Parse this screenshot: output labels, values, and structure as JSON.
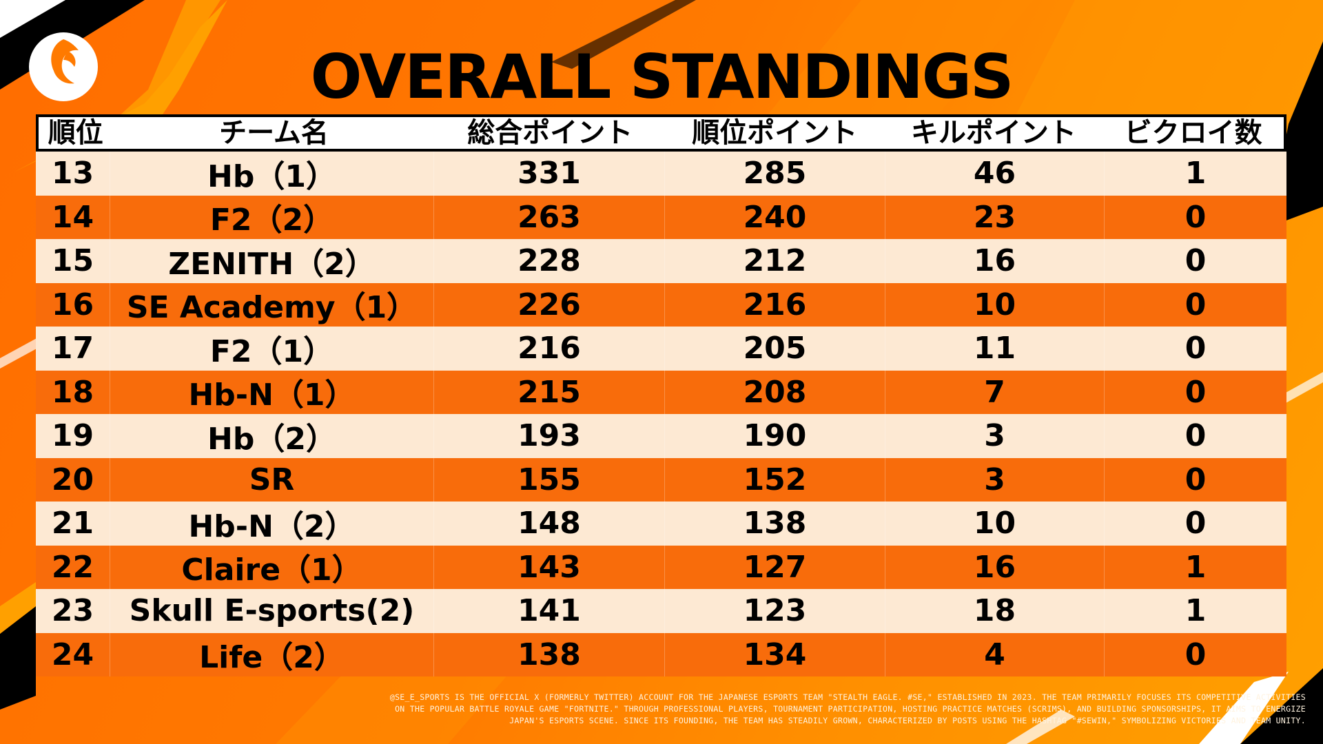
{
  "header": {
    "title": "OVERALL STANDINGS",
    "logo_icon": "phoenix-logo-icon"
  },
  "colors": {
    "background": "#ff7a00",
    "row_light": "#fde9d3",
    "row_dark": "#f86c0b",
    "header_bg": "#ffffff",
    "text": "#000000"
  },
  "table": {
    "columns": [
      "順位",
      "チーム名",
      "総合ポイント",
      "順位ポイント",
      "キルポイント",
      "ビクロイ数"
    ],
    "rows": [
      {
        "rank": "13",
        "team": "Hb（1）",
        "total": "331",
        "placement": "285",
        "kills": "46",
        "wins": "1"
      },
      {
        "rank": "14",
        "team": "F2（2）",
        "total": "263",
        "placement": "240",
        "kills": "23",
        "wins": "0"
      },
      {
        "rank": "15",
        "team": "ZENITH（2）",
        "total": "228",
        "placement": "212",
        "kills": "16",
        "wins": "0"
      },
      {
        "rank": "16",
        "team": "SE Academy（1）",
        "total": "226",
        "placement": "216",
        "kills": "10",
        "wins": "0"
      },
      {
        "rank": "17",
        "team": "F2（1）",
        "total": "216",
        "placement": "205",
        "kills": "11",
        "wins": "0"
      },
      {
        "rank": "18",
        "team": "Hb-N（1）",
        "total": "215",
        "placement": "208",
        "kills": "7",
        "wins": "0"
      },
      {
        "rank": "19",
        "team": "Hb（2）",
        "total": "193",
        "placement": "190",
        "kills": "3",
        "wins": "0"
      },
      {
        "rank": "20",
        "team": "SR",
        "total": "155",
        "placement": "152",
        "kills": "3",
        "wins": "0"
      },
      {
        "rank": "21",
        "team": "Hb-N（2）",
        "total": "148",
        "placement": "138",
        "kills": "10",
        "wins": "0"
      },
      {
        "rank": "22",
        "team": "Claire（1）",
        "total": "143",
        "placement": "127",
        "kills": "16",
        "wins": "1"
      },
      {
        "rank": "23",
        "team": "Skull E-sports(2)",
        "total": "141",
        "placement": "123",
        "kills": "18",
        "wins": "1"
      },
      {
        "rank": "24",
        "team": "Life（2）",
        "total": "138",
        "placement": "134",
        "kills": "4",
        "wins": "0"
      }
    ]
  },
  "footer": {
    "lines": [
      "@SE_E_SPORTS IS THE OFFICIAL X (FORMERLY TWITTER) ACCOUNT FOR THE JAPANESE ESPORTS TEAM \"STEALTH EAGLE. #SE,\" ESTABLISHED IN 2023. THE TEAM PRIMARILY FOCUSES ITS COMPETITIVE ACTIVITIES",
      "ON THE POPULAR BATTLE ROYALE GAME \"FORTNITE.\" THROUGH PROFESSIONAL PLAYERS, TOURNAMENT PARTICIPATION, HOSTING PRACTICE MATCHES (SCRIMS), AND BUILDING SPONSORSHIPS, IT AIMS TO ENERGIZE",
      "JAPAN'S ESPORTS SCENE. SINCE ITS FOUNDING, THE TEAM HAS STEADILY GROWN, CHARACTERIZED BY POSTS USING THE HASHTAG \"#SEWIN,\" SYMBOLIZING VICTORIES AND TEAM UNITY."
    ]
  }
}
